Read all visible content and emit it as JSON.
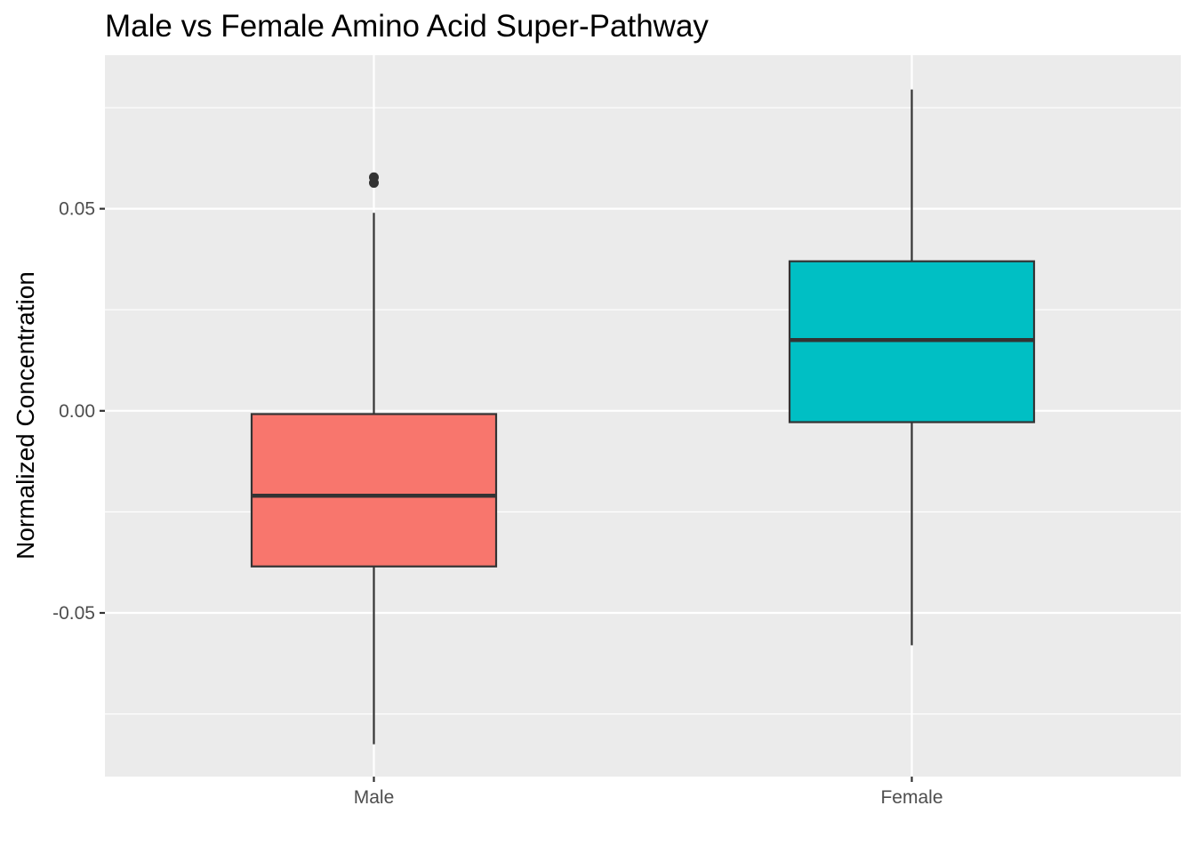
{
  "chart_data": {
    "type": "boxplot",
    "title": "Male vs Female Amino Acid Super-Pathway",
    "xlabel": "",
    "ylabel": "Normalized Concentration",
    "categories": [
      "Male",
      "Female"
    ],
    "ylim": [
      -0.0905,
      0.088
    ],
    "yticks": [
      -0.05,
      0.0,
      0.05
    ],
    "ytick_labels": [
      "-0.05",
      "0.00",
      "0.05"
    ],
    "minor_yticks": [
      -0.075,
      -0.025,
      0.025,
      0.075
    ],
    "grid": true,
    "background_color": "#ebebeb",
    "grid_color": "#ffffff",
    "line_color": "#333333",
    "series": [
      {
        "category": "Male",
        "fill": "#f8766d",
        "whisker_low": -0.0825,
        "q1": -0.0385,
        "median": -0.021,
        "q3": -0.0008,
        "whisker_high": 0.049,
        "outliers": [
          0.0564,
          0.0578
        ]
      },
      {
        "category": "Female",
        "fill": "#00bfc4",
        "whisker_low": -0.058,
        "q1": -0.0028,
        "median": 0.0175,
        "q3": 0.037,
        "whisker_high": 0.0795,
        "outliers": []
      }
    ]
  }
}
